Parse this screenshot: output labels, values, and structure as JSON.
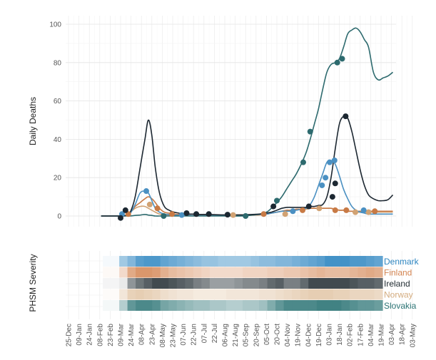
{
  "chart_data": [
    {
      "type": "line",
      "ylabel": "Daily Deaths",
      "ylim": [
        0,
        100
      ],
      "yticks": [
        0,
        20,
        40,
        60,
        80,
        100
      ],
      "x_dates": [
        "2020-02-10",
        "2020-03-02",
        "2020-03-09",
        "2020-03-13",
        "2020-03-18",
        "2020-03-23",
        "2020-03-30",
        "2020-04-06",
        "2020-04-13",
        "2020-04-18",
        "2020-04-23",
        "2020-04-28",
        "2020-05-04",
        "2020-05-11",
        "2020-05-18",
        "2020-05-25",
        "2020-06-01",
        "2020-06-08",
        "2020-06-15",
        "2020-06-22",
        "2020-07-01",
        "2020-07-10",
        "2020-07-20",
        "2020-08-01",
        "2020-08-15",
        "2020-09-01",
        "2020-09-15",
        "2020-09-25",
        "2020-10-05",
        "2020-10-12",
        "2020-10-20",
        "2020-10-27",
        "2020-11-03",
        "2020-11-10",
        "2020-11-17",
        "2020-11-24",
        "2020-12-01",
        "2020-12-07",
        "2020-12-13",
        "2020-12-19",
        "2020-12-25",
        "2020-12-31",
        "2021-01-06",
        "2021-01-12",
        "2021-01-18",
        "2021-01-24",
        "2021-01-30",
        "2021-02-05",
        "2021-02-11",
        "2021-02-17",
        "2021-02-23",
        "2021-03-01",
        "2021-03-08",
        "2021-03-15",
        "2021-03-22",
        "2021-03-29",
        "2021-04-05"
      ],
      "series": [
        {
          "name": "Denmark",
          "color": "#4a90c2",
          "values": [
            0,
            0,
            0,
            0,
            0.5,
            1.5,
            6,
            12,
            13,
            12,
            8,
            4,
            2,
            1,
            0.8,
            0.5,
            0.4,
            0.3,
            0.3,
            0.2,
            0.2,
            0.2,
            0.2,
            0.2,
            0.3,
            0.4,
            0.5,
            0.8,
            1,
            1.5,
            2,
            2.5,
            2.5,
            2.5,
            3,
            3.5,
            4,
            6,
            10,
            16,
            22,
            28,
            29,
            27,
            21,
            14,
            9,
            5,
            3,
            2,
            1.5,
            1,
            1,
            1,
            1,
            1,
            1
          ],
          "markers": [
            [
              "2020-03-11",
              1
            ],
            [
              "2020-04-15",
              13
            ],
            [
              "2020-06-05",
              0.5
            ],
            [
              "2020-11-12",
              2.5
            ],
            [
              "2020-12-24",
              16
            ],
            [
              "2020-12-29",
              20
            ],
            [
              "2021-01-04",
              28
            ],
            [
              "2021-01-11",
              29
            ],
            [
              "2021-02-22",
              3
            ]
          ]
        },
        {
          "name": "Finland",
          "color": "#c87a45",
          "values": [
            0,
            0,
            0,
            0,
            0.5,
            2,
            5,
            7,
            9,
            10,
            9,
            7,
            4,
            2,
            1.5,
            1,
            0.8,
            0.5,
            0.4,
            0.3,
            0.3,
            0.3,
            0.3,
            0.3,
            0.4,
            0.5,
            0.6,
            0.8,
            1,
            1.5,
            2,
            2.5,
            3,
            3,
            3.5,
            3.5,
            4,
            4,
            4,
            4,
            4,
            4,
            4,
            3.5,
            3,
            3,
            2.5,
            2.5,
            2.5,
            2.5,
            2.5,
            2.5,
            2.5,
            2.5,
            2.5,
            2.5,
            2.5
          ],
          "markers": [
            [
              "2020-03-20",
              1
            ],
            [
              "2020-05-01",
              4
            ],
            [
              "2020-05-22",
              1
            ],
            [
              "2020-10-01",
              1
            ],
            [
              "2020-11-26",
              3
            ],
            [
              "2021-01-12",
              3
            ],
            [
              "2021-01-28",
              3
            ],
            [
              "2021-03-10",
              2.5
            ]
          ]
        },
        {
          "name": "Ireland",
          "color": "#1c2731",
          "values": [
            0,
            0,
            0,
            0,
            0.5,
            2,
            10,
            25,
            40,
            50,
            42,
            25,
            12,
            5,
            3,
            2,
            1.5,
            1,
            1,
            1,
            0.8,
            0.8,
            0.7,
            0.6,
            0.6,
            0.6,
            0.8,
            1,
            1.5,
            2,
            3,
            4,
            4.5,
            4.5,
            4.5,
            4.5,
            4.5,
            5,
            5,
            5.5,
            6,
            10,
            20,
            35,
            48,
            52,
            51,
            44,
            34,
            24,
            16,
            11,
            9,
            8,
            8,
            8.5,
            11
          ],
          "markers": [
            [
              "2020-03-09",
              -1
            ],
            [
              "2020-03-16",
              3
            ],
            [
              "2020-06-12",
              1.5
            ],
            [
              "2020-06-26",
              1
            ],
            [
              "2020-07-14",
              1
            ],
            [
              "2020-08-10",
              0.7
            ],
            [
              "2020-10-15",
              5
            ],
            [
              "2020-12-05",
              5
            ],
            [
              "2021-01-08",
              10
            ],
            [
              "2021-01-12",
              17
            ],
            [
              "2021-01-27",
              52
            ]
          ]
        },
        {
          "name": "Norway",
          "color": "#d1a273",
          "values": [
            0,
            0,
            0,
            0,
            0.5,
            2,
            4,
            5,
            5,
            4,
            3,
            2,
            1,
            0.5,
            0.3,
            0.2,
            0.2,
            0.2,
            0.2,
            0.2,
            0.2,
            0.2,
            0.2,
            0.2,
            0.2,
            0.3,
            0.4,
            0.5,
            1,
            1.5,
            2,
            2.5,
            3,
            3,
            3.5,
            3.5,
            3.5,
            4,
            4,
            4,
            4,
            4,
            4,
            3.5,
            3,
            3,
            2.5,
            2.5,
            2,
            2,
            2,
            2,
            2,
            2,
            2,
            2,
            2
          ],
          "markers": [
            [
              "2020-04-20",
              6
            ],
            [
              "2020-08-18",
              0.5
            ],
            [
              "2020-11-01",
              1
            ],
            [
              "2020-12-20",
              4
            ],
            [
              "2021-02-10",
              2
            ],
            [
              "2021-03-01",
              2
            ]
          ]
        },
        {
          "name": "Slovakia",
          "color": "#2d6a6e",
          "values": [
            0,
            0,
            0,
            0,
            0,
            0,
            0.3,
            0.5,
            0.8,
            0.5,
            0.3,
            0,
            0,
            0,
            0,
            0,
            0,
            0,
            0,
            0,
            0,
            0,
            0,
            0,
            0,
            0,
            0.5,
            1,
            2,
            4,
            7,
            10,
            14,
            18,
            22,
            27,
            33,
            40,
            48,
            56,
            66,
            75,
            79,
            80,
            82,
            88,
            95,
            97,
            98,
            96,
            92,
            88,
            75,
            71,
            72,
            73,
            75
          ],
          "markers": [
            [
              "2020-05-10",
              0
            ],
            [
              "2020-09-05",
              0
            ],
            [
              "2020-10-20",
              8
            ],
            [
              "2020-11-27",
              28
            ],
            [
              "2020-12-07",
              44
            ],
            [
              "2021-01-15",
              80
            ],
            [
              "2021-01-22",
              82
            ]
          ]
        }
      ]
    },
    {
      "type": "heatmap",
      "ylabel": "PHSM Severity",
      "x_ticks": [
        "25-Dec",
        "09-Jan",
        "24-Jan",
        "08-Feb",
        "23-Feb",
        "09-Mar",
        "24-Mar",
        "08-Apr",
        "23-Apr",
        "08-May",
        "23-May",
        "07-Jun",
        "22-Jun",
        "07-Jul",
        "22-Jul",
        "06-Aug",
        "21-Aug",
        "05-Sep",
        "20-Sep",
        "05-Oct",
        "20-Oct",
        "04-Nov",
        "19-Nov",
        "04-Dec",
        "19-Dec",
        "03-Jan",
        "18-Jan",
        "02-Feb",
        "17-Feb",
        "04-Mar",
        "19-Mar",
        "03-Apr",
        "18-Apr",
        "03-May"
      ],
      "x_tick_dates": [
        "2019-12-25",
        "2020-01-09",
        "2020-01-24",
        "2020-02-08",
        "2020-02-23",
        "2020-03-09",
        "2020-03-24",
        "2020-04-08",
        "2020-04-23",
        "2020-05-08",
        "2020-05-23",
        "2020-06-07",
        "2020-06-22",
        "2020-07-07",
        "2020-07-22",
        "2020-08-06",
        "2020-08-21",
        "2020-09-05",
        "2020-09-20",
        "2020-10-05",
        "2020-10-20",
        "2020-11-04",
        "2020-11-19",
        "2020-12-04",
        "2020-12-19",
        "2021-01-03",
        "2021-01-18",
        "2021-02-02",
        "2021-02-17",
        "2021-03-04",
        "2021-03-19",
        "2021-04-03",
        "2021-04-18",
        "2021-05-03"
      ],
      "rows": [
        {
          "name": "Denmark",
          "color": "#2e86c1",
          "intensity": [
            0.45,
            0.6,
            0.8,
            0.85,
            0.85,
            0.75,
            0.7,
            0.65,
            0.6,
            0.55,
            0.5,
            0.5,
            0.45,
            0.45,
            0.45,
            0.45,
            0.5,
            0.55,
            0.55,
            0.6,
            0.6,
            0.65,
            0.7,
            0.75,
            0.8,
            0.9,
            0.9,
            0.9,
            0.85,
            0.85,
            0.8,
            0.75
          ]
        },
        {
          "name": "Finland",
          "color": "#d48552",
          "intensity": [
            0.3,
            0.7,
            0.85,
            0.85,
            0.8,
            0.65,
            0.55,
            0.5,
            0.45,
            0.4,
            0.35,
            0.3,
            0.3,
            0.3,
            0.3,
            0.35,
            0.35,
            0.35,
            0.4,
            0.4,
            0.45,
            0.45,
            0.5,
            0.55,
            0.6,
            0.55,
            0.55,
            0.55,
            0.6,
            0.65,
            0.7,
            0.65
          ]
        },
        {
          "name": "Ireland",
          "color": "#1f2a30",
          "intensity": [
            0.1,
            0.5,
            0.65,
            0.75,
            0.85,
            0.85,
            0.8,
            0.75,
            0.7,
            0.6,
            0.55,
            0.45,
            0.45,
            0.45,
            0.5,
            0.55,
            0.55,
            0.6,
            0.7,
            0.75,
            0.6,
            0.6,
            0.7,
            0.85,
            0.85,
            0.85,
            0.85,
            0.85,
            0.8,
            0.75,
            0.75,
            0.7
          ]
        },
        {
          "name": "Norway",
          "color": "#d5ad80",
          "intensity": [
            0.3,
            0.55,
            0.6,
            0.55,
            0.5,
            0.4,
            0.35,
            0.3,
            0.3,
            0.25,
            0.25,
            0.25,
            0.25,
            0.3,
            0.3,
            0.3,
            0.3,
            0.35,
            0.35,
            0.4,
            0.45,
            0.5,
            0.55,
            0.6,
            0.6,
            0.6,
            0.55,
            0.55,
            0.5,
            0.5,
            0.5,
            0.45
          ]
        },
        {
          "name": "Slovakia",
          "color": "#2c7475",
          "intensity": [
            0.35,
            0.75,
            0.85,
            0.85,
            0.8,
            0.65,
            0.6,
            0.55,
            0.5,
            0.45,
            0.45,
            0.4,
            0.4,
            0.35,
            0.35,
            0.4,
            0.4,
            0.45,
            0.6,
            0.75,
            0.85,
            0.85,
            0.85,
            0.85,
            0.9,
            0.9,
            0.9,
            0.85,
            0.8,
            0.75,
            0.75,
            0.7
          ]
        }
      ]
    }
  ]
}
